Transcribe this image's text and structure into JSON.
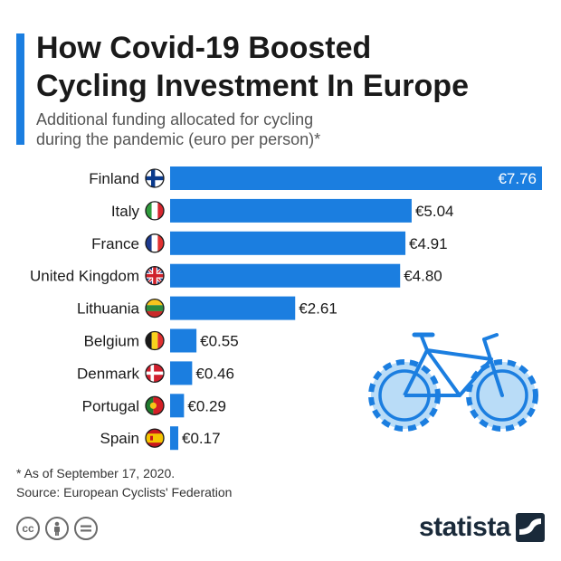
{
  "header": {
    "title_line1": "How Covid-19 Boosted",
    "title_line2": "Cycling Investment In Europe",
    "subtitle_line1": "Additional funding allocated for cycling",
    "subtitle_line2": "during the pandemic (euro per person)*"
  },
  "colors": {
    "accent": "#1b7ee0",
    "bar": "#1b7ee0",
    "bike_fill": "#b9dcf7",
    "bike_stroke": "#1b7ee0"
  },
  "chart_data": {
    "type": "bar",
    "orientation": "horizontal",
    "categories": [
      "Finland",
      "Italy",
      "France",
      "United Kingdom",
      "Lithuania",
      "Belgium",
      "Denmark",
      "Portugal",
      "Spain"
    ],
    "values": [
      7.76,
      5.04,
      4.91,
      4.8,
      2.61,
      0.55,
      0.46,
      0.29,
      0.17
    ],
    "value_labels": [
      "€7.76",
      "€5.04",
      "€4.91",
      "€4.80",
      "€2.61",
      "€0.55",
      "€0.46",
      "€0.29",
      "€0.17"
    ],
    "flags": [
      "finland-flag-icon",
      "italy-flag-icon",
      "france-flag-icon",
      "united-kingdom-flag-icon",
      "lithuania-flag-icon",
      "belgium-flag-icon",
      "denmark-flag-icon",
      "portugal-flag-icon",
      "spain-flag-icon"
    ],
    "xlim": [
      0,
      7.76
    ],
    "grid": false,
    "legend": "none"
  },
  "footer": {
    "note": "* As of September 17, 2020.",
    "source": "Source: European Cyclists' Federation",
    "license_icons": [
      "cc-icon",
      "attribution-icon",
      "no-derivatives-icon"
    ],
    "brand": "statista"
  }
}
